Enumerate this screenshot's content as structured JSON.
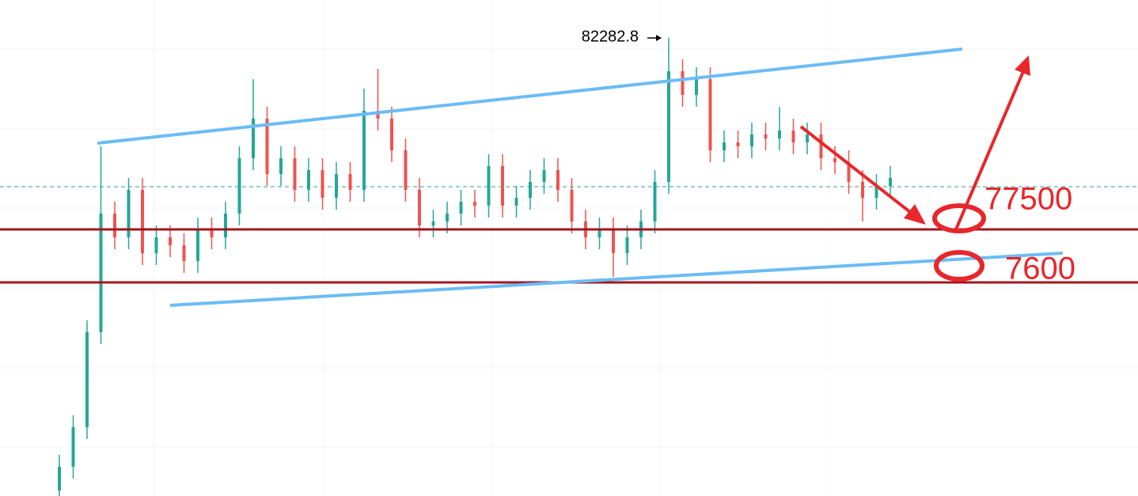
{
  "chart_data": {
    "type": "candlestick",
    "open": [
      70840,
      71440,
      72440,
      74840,
      77840,
      77240,
      78440,
      76840,
      77240,
      77040,
      76640,
      77440,
      77240,
      77840,
      79240,
      80240,
      78840,
      79240,
      78440,
      78940,
      78240,
      78840,
      78440,
      80440,
      80240,
      79440,
      78440,
      77540,
      77640,
      77840,
      78140,
      78040,
      79040,
      78040,
      78240,
      78640,
      78940,
      78440,
      77640,
      77240,
      77440,
      76840,
      77240,
      77640,
      78640,
      81440,
      80840,
      81240,
      79440,
      79640,
      79540,
      79840,
      79740,
      79940,
      79640,
      79840,
      79240,
      79140,
      78640,
      78240,
      78540
    ],
    "high": [
      71740,
      72740,
      75140,
      79540,
      78140,
      78740,
      78740,
      77540,
      77540,
      77340,
      77740,
      77740,
      78140,
      79540,
      81240,
      80540,
      79540,
      79540,
      79240,
      79240,
      79140,
      79140,
      81000,
      81500,
      80540,
      79740,
      78740,
      77940,
      78140,
      78440,
      78440,
      79340,
      79340,
      78540,
      78940,
      79240,
      79240,
      78740,
      77940,
      77740,
      77740,
      77540,
      77940,
      78940,
      82282.8,
      81740,
      81540,
      81540,
      79940,
      79940,
      80140,
      80140,
      80540,
      80240,
      80140,
      80140,
      79540,
      79440,
      78940,
      78840,
      79040
    ],
    "low": [
      70540,
      71140,
      72140,
      74540,
      76940,
      76940,
      76540,
      76540,
      76740,
      76340,
      76340,
      76940,
      76940,
      77540,
      78940,
      78540,
      78540,
      78140,
      78140,
      77940,
      77940,
      78140,
      78140,
      79940,
      79140,
      78140,
      77240,
      77240,
      77340,
      77540,
      77740,
      77740,
      77740,
      77740,
      77940,
      78340,
      78140,
      77340,
      76940,
      76940,
      76240,
      76540,
      76940,
      77340,
      78340,
      80540,
      80540,
      79140,
      79140,
      79240,
      79240,
      79440,
      79440,
      79340,
      79340,
      78940,
      78840,
      78340,
      77640,
      77940,
      78240
    ],
    "close": [
      71440,
      72440,
      74840,
      77840,
      77240,
      78440,
      76840,
      77240,
      77040,
      76640,
      77440,
      77240,
      77840,
      79240,
      80240,
      78840,
      79240,
      78440,
      78940,
      78240,
      78840,
      78440,
      80440,
      80240,
      79440,
      78440,
      77540,
      77640,
      77840,
      78140,
      78040,
      79040,
      78040,
      78240,
      78640,
      78940,
      78440,
      77640,
      77240,
      77440,
      76840,
      77240,
      77640,
      78640,
      81440,
      80840,
      81240,
      79440,
      79640,
      79540,
      79840,
      79740,
      79940,
      79640,
      79840,
      79240,
      79140,
      78640,
      78240,
      78540,
      78740
    ],
    "ylim": [
      70700,
      83240
    ],
    "up_color": "#26a69a",
    "down_color": "#ef5350",
    "annotations": [
      "82282.8",
      "77500",
      "7600"
    ]
  }
}
